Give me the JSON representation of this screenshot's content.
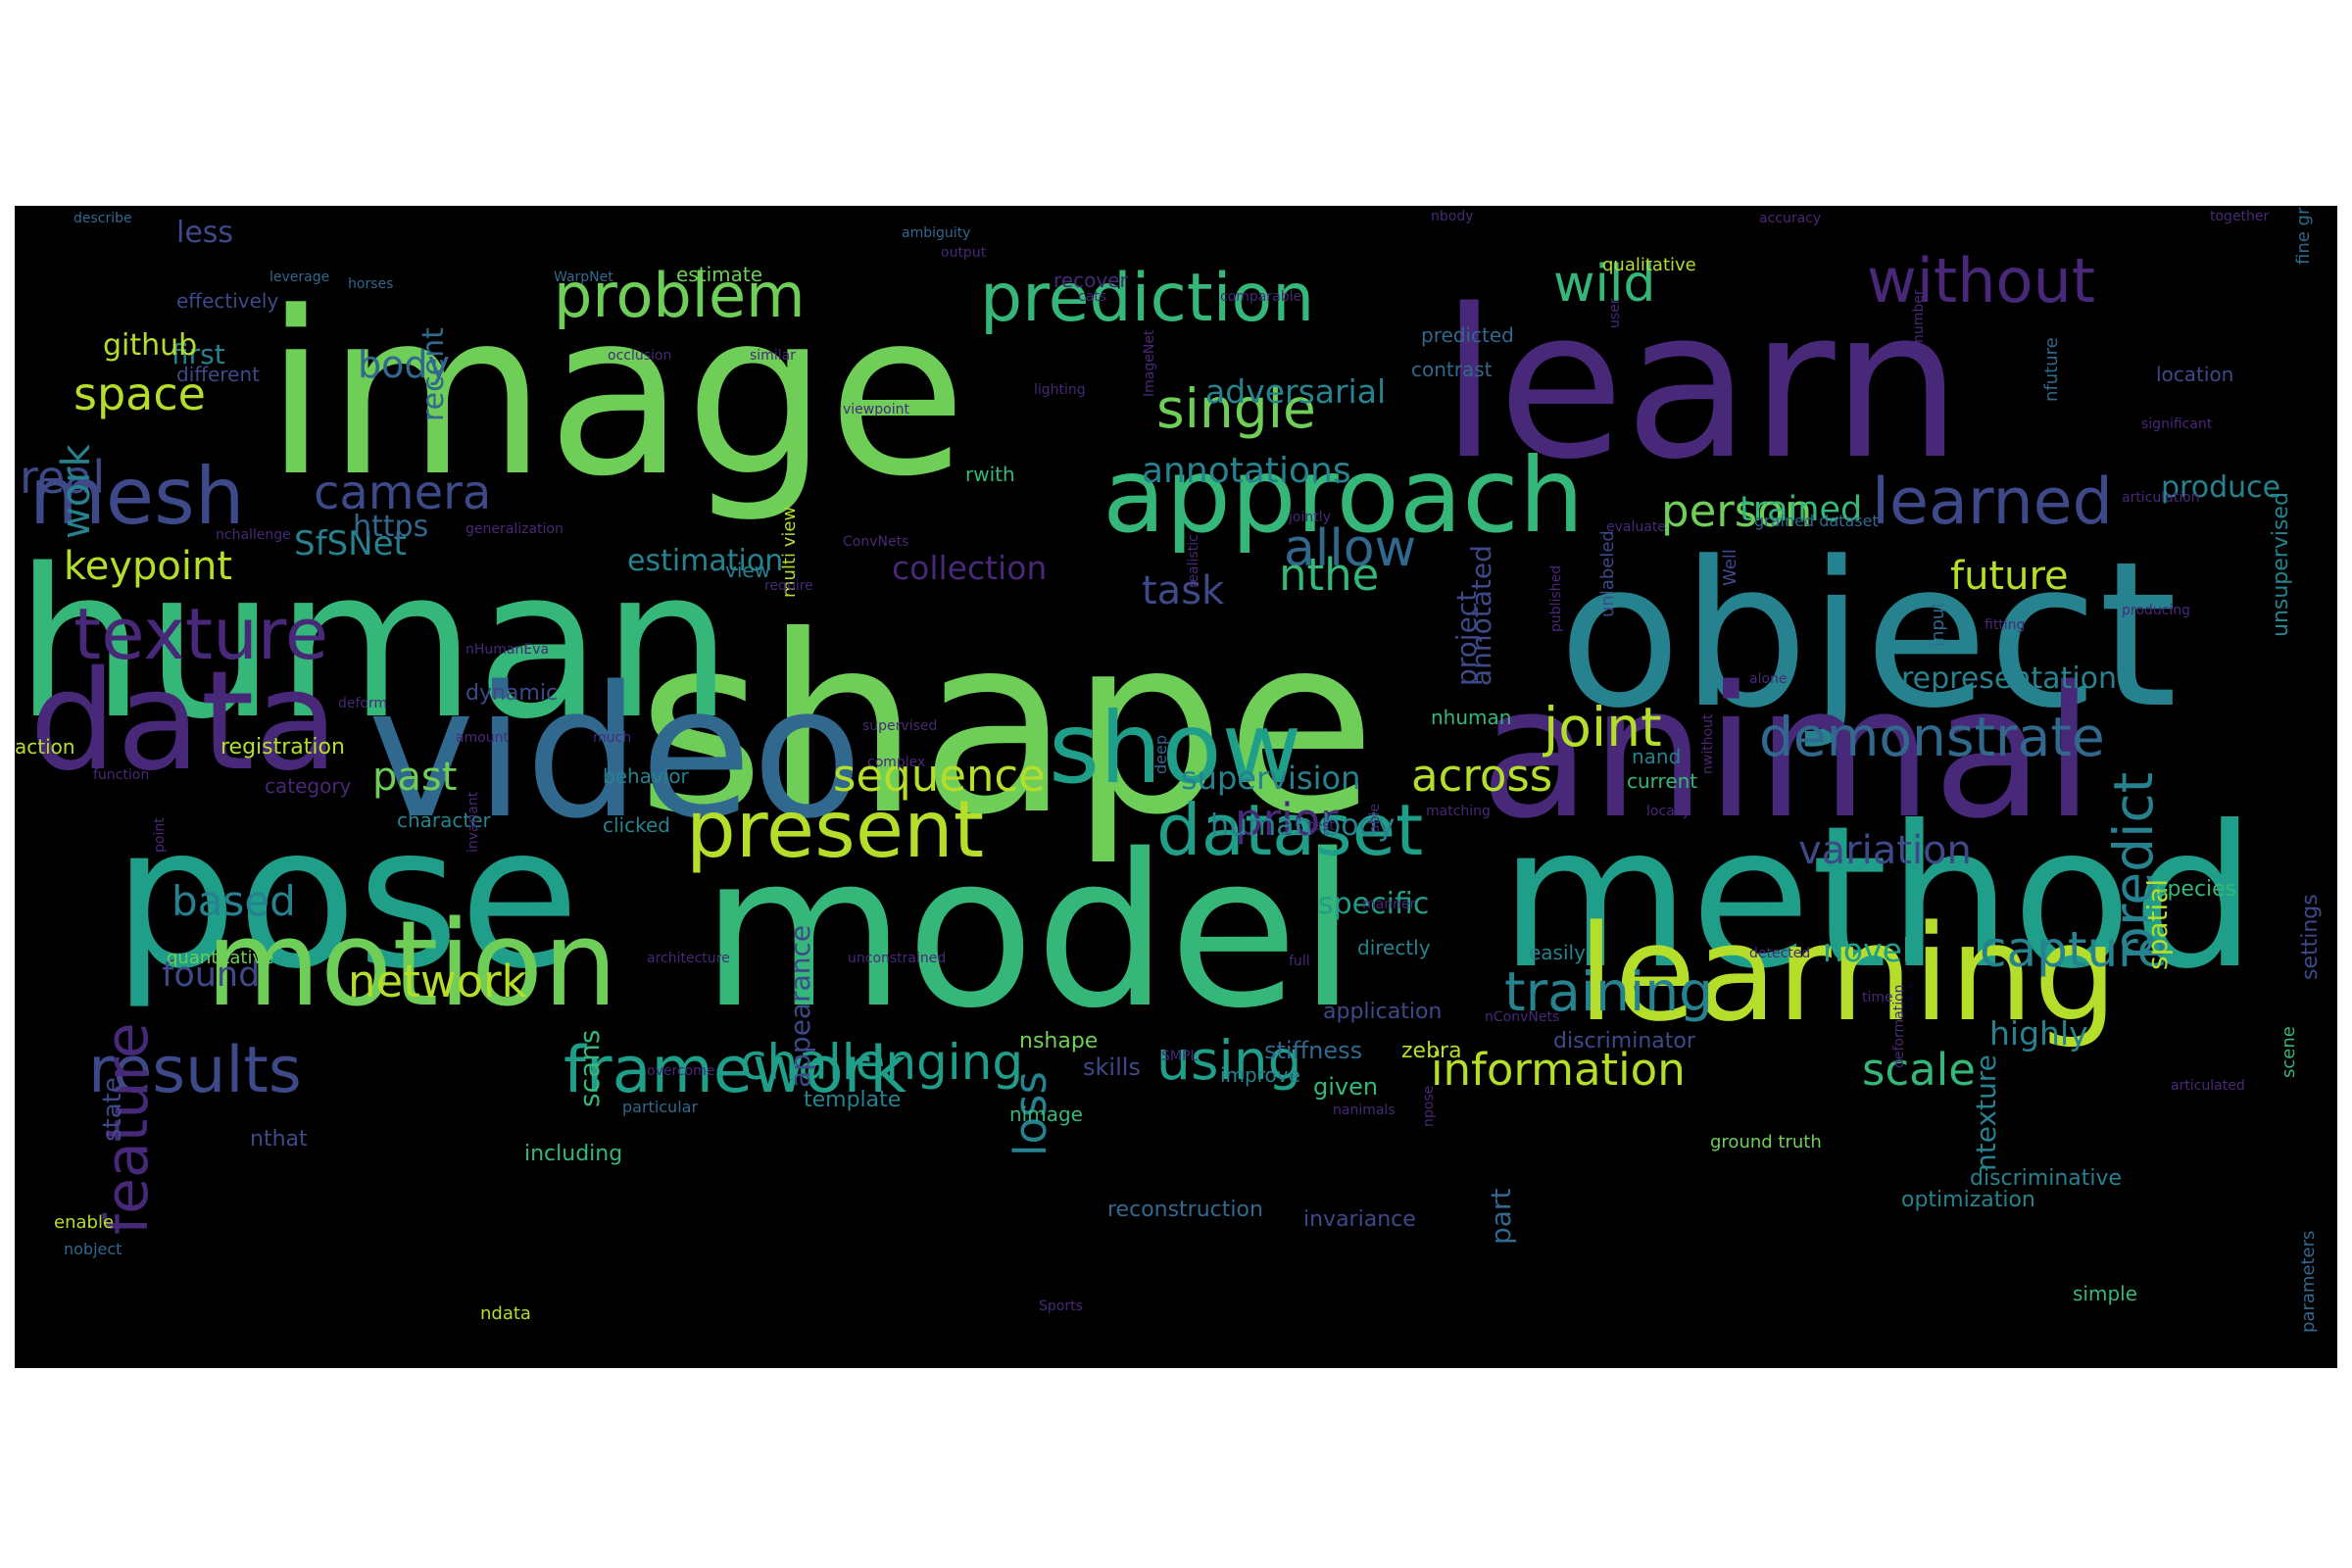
{
  "background_color": "#000000",
  "palette": [
    "#440154",
    "#482878",
    "#3e4989",
    "#31688e",
    "#26828e",
    "#1f9e89",
    "#35b779",
    "#6ece58",
    "#b5de2b",
    "#fde725"
  ],
  "words": [
    {
      "text": "image",
      "color": "#6ece58",
      "weight": 100
    },
    {
      "text": "shape",
      "color": "#6ece58",
      "weight": 100
    },
    {
      "text": "learn",
      "color": "#482878",
      "weight": 96
    },
    {
      "text": "human",
      "color": "#35b779",
      "weight": 88
    },
    {
      "text": "object",
      "color": "#26828e",
      "weight": 84
    },
    {
      "text": "model",
      "color": "#35b779",
      "weight": 92
    },
    {
      "text": "pose",
      "color": "#1f9e89",
      "weight": 90
    },
    {
      "text": "method",
      "color": "#1f9e89",
      "weight": 84
    },
    {
      "text": "animal",
      "color": "#482878",
      "weight": 78
    },
    {
      "text": "video",
      "color": "#31688e",
      "weight": 76
    },
    {
      "text": "data",
      "color": "#482878",
      "weight": 66
    },
    {
      "text": "learning",
      "color": "#b5de2b",
      "weight": 64
    },
    {
      "text": "motion",
      "color": "#6ece58",
      "weight": 60
    },
    {
      "text": "approach",
      "color": "#35b779",
      "weight": 54
    },
    {
      "text": "show",
      "color": "#1f9e89",
      "weight": 54
    },
    {
      "text": "present",
      "color": "#b5de2b",
      "weight": 48
    },
    {
      "text": "mesh",
      "color": "#3e4989",
      "weight": 46
    },
    {
      "text": "texture",
      "color": "#482878",
      "weight": 44
    },
    {
      "text": "dataset",
      "color": "#1f9e89",
      "weight": 42
    },
    {
      "text": "prediction",
      "color": "#35b779",
      "weight": 40
    },
    {
      "text": "results",
      "color": "#3e4989",
      "weight": 40
    },
    {
      "text": "framework",
      "color": "#1f9e89",
      "weight": 40
    },
    {
      "text": "learned",
      "color": "#3e4989",
      "weight": 38
    },
    {
      "text": "problem",
      "color": "#6ece58",
      "weight": 36
    },
    {
      "text": "without",
      "color": "#482878",
      "weight": 36
    },
    {
      "text": "feature",
      "color": "#482878",
      "weight": 36
    },
    {
      "text": "demonstrate",
      "color": "#31688e",
      "weight": 32
    },
    {
      "text": "training",
      "color": "#26828e",
      "weight": 32
    },
    {
      "text": "using",
      "color": "#1f9e89",
      "weight": 32
    },
    {
      "text": "predict",
      "color": "#26828e",
      "weight": 30
    },
    {
      "text": "single",
      "color": "#6ece58",
      "weight": 30
    },
    {
      "text": "capture",
      "color": "#26828e",
      "weight": 30
    },
    {
      "text": "allow",
      "color": "#31688e",
      "weight": 30
    },
    {
      "text": "joint",
      "color": "#b5de2b",
      "weight": 30
    },
    {
      "text": "camera",
      "color": "#3e4989",
      "weight": 28
    },
    {
      "text": "wild",
      "color": "#35b779",
      "weight": 28
    },
    {
      "text": "challenging",
      "color": "#1f9e89",
      "weight": 28
    },
    {
      "text": "information",
      "color": "#b5de2b",
      "weight": 28
    },
    {
      "text": "scale",
      "color": "#35b779",
      "weight": 28
    },
    {
      "text": "network",
      "color": "#b5de2b",
      "weight": 26
    },
    {
      "text": "space",
      "color": "#b5de2b",
      "weight": 26
    },
    {
      "text": "person",
      "color": "#6ece58",
      "weight": 26
    },
    {
      "text": "sequence",
      "color": "#b5de2b",
      "weight": 26
    },
    {
      "text": "across",
      "color": "#b5de2b",
      "weight": 26
    },
    {
      "text": "keypoint",
      "color": "#b5de2b",
      "weight": 24
    },
    {
      "text": "nthe",
      "color": "#35b779",
      "weight": 24
    },
    {
      "text": "future",
      "color": "#b5de2b",
      "weight": 24
    },
    {
      "text": "prior",
      "color": "#482878",
      "weight": 24
    },
    {
      "text": "based",
      "color": "#26828e",
      "weight": 24
    },
    {
      "text": "task",
      "color": "#3e4989",
      "weight": 24
    },
    {
      "text": "loss",
      "color": "#26828e",
      "weight": 24
    },
    {
      "text": "variation",
      "color": "#3e4989",
      "weight": 22
    },
    {
      "text": "past",
      "color": "#6ece58",
      "weight": 22
    },
    {
      "text": "annotations",
      "color": "#26828e",
      "weight": 22
    },
    {
      "text": "SfSNet",
      "color": "#26828e",
      "weight": 22
    },
    {
      "text": "real",
      "color": "#3e4989",
      "weight": 22
    },
    {
      "text": "body",
      "color": "#31688e",
      "weight": 22
    },
    {
      "text": "adversarial",
      "color": "#26828e",
      "weight": 20
    },
    {
      "text": "representation",
      "color": "#26828e",
      "weight": 18
    },
    {
      "text": "collection",
      "color": "#482878",
      "weight": 18
    },
    {
      "text": "produce",
      "color": "#26828e",
      "weight": 18
    },
    {
      "text": "work",
      "color": "#26828e",
      "weight": 18
    },
    {
      "text": "trained",
      "color": "#35b779",
      "weight": 18
    },
    {
      "text": "found",
      "color": "#3e4989",
      "weight": 18
    },
    {
      "text": "novel",
      "color": "#1f9e89",
      "weight": 18
    },
    {
      "text": "highly",
      "color": "#26828e",
      "weight": 18
    },
    {
      "text": "supervision",
      "color": "#26828e",
      "weight": 18
    },
    {
      "text": "human body",
      "color": "#26828e",
      "weight": 18
    },
    {
      "text": "specific",
      "color": "#1f9e89",
      "weight": 18
    },
    {
      "text": "estimation",
      "color": "#26828e",
      "weight": 18
    },
    {
      "text": "https",
      "color": "#31688e",
      "weight": 16
    },
    {
      "text": "first",
      "color": "#26828e",
      "weight": 16
    },
    {
      "text": "github",
      "color": "#b5de2b",
      "weight": 16
    },
    {
      "text": "less",
      "color": "#3e4989",
      "weight": 16
    },
    {
      "text": "recent",
      "color": "#31688e",
      "weight": 16
    },
    {
      "text": "spatial",
      "color": "#b5de2b",
      "weight": 16
    },
    {
      "text": "scans",
      "color": "#35b779",
      "weight": 16
    },
    {
      "text": "appearance",
      "color": "#3e4989",
      "weight": 16
    },
    {
      "text": "annotated",
      "color": "#3e4989",
      "weight": 16
    },
    {
      "text": "project",
      "color": "#3e4989",
      "weight": 16
    },
    {
      "text": "state",
      "color": "#3e4989",
      "weight": 14
    },
    {
      "text": "ntexture",
      "color": "#26828e",
      "weight": 14
    },
    {
      "text": "part",
      "color": "#31688e",
      "weight": 14
    },
    {
      "text": "given",
      "color": "#35b779",
      "weight": 14
    },
    {
      "text": "stiffness",
      "color": "#31688e",
      "weight": 12
    },
    {
      "text": "skills",
      "color": "#3e4989",
      "weight": 12
    },
    {
      "text": "nthat",
      "color": "#3e4989",
      "weight": 14
    },
    {
      "text": "including",
      "color": "#35b779",
      "weight": 12
    },
    {
      "text": "unsupervised",
      "color": "#26828e",
      "weight": 12
    },
    {
      "text": "application",
      "color": "#3e4989",
      "weight": 12
    },
    {
      "text": "nshape",
      "color": "#6ece58",
      "weight": 12
    },
    {
      "text": "zebra",
      "color": "#b5de2b",
      "weight": 12
    },
    {
      "text": "species",
      "color": "#35b779",
      "weight": 12
    },
    {
      "text": "settings",
      "color": "#3e4989",
      "weight": 12
    },
    {
      "text": "dynamic",
      "color": "#3e4989",
      "weight": 12
    },
    {
      "text": "registration",
      "color": "#b5de2b",
      "weight": 12
    },
    {
      "text": "discriminator",
      "color": "#3e4989",
      "weight": 12
    },
    {
      "text": "discriminative",
      "color": "#26828e",
      "weight": 12
    },
    {
      "text": "reconstruction",
      "color": "#31688e",
      "weight": 12
    },
    {
      "text": "optimization",
      "color": "#26828e",
      "weight": 12
    },
    {
      "text": "invariance",
      "color": "#3e4989",
      "weight": 12
    },
    {
      "text": "template",
      "color": "#26828e",
      "weight": 12
    },
    {
      "text": "behavior",
      "color": "#26828e",
      "weight": 12
    },
    {
      "text": "contrast",
      "color": "#31688e",
      "weight": 12
    },
    {
      "text": "recover",
      "color": "#482878",
      "weight": 12
    },
    {
      "text": "estimate",
      "color": "#6ece58",
      "weight": 12
    },
    {
      "text": "effectively",
      "color": "#3e4989",
      "weight": 12
    },
    {
      "text": "different",
      "color": "#3e4989",
      "weight": 12
    },
    {
      "text": "location",
      "color": "#3e4989",
      "weight": 12
    },
    {
      "text": "predicted",
      "color": "#31688e",
      "weight": 12
    },
    {
      "text": "nhuman",
      "color": "#35b779",
      "weight": 12
    },
    {
      "text": "nand",
      "color": "#26828e",
      "weight": 12
    },
    {
      "text": "current",
      "color": "#35b779",
      "weight": 12
    },
    {
      "text": "category",
      "color": "#482878",
      "weight": 12
    },
    {
      "text": "action",
      "color": "#b5de2b",
      "weight": 12
    },
    {
      "text": "character",
      "color": "#26828e",
      "weight": 12
    },
    {
      "text": "clicked",
      "color": "#26828e",
      "weight": 12
    },
    {
      "text": "directly",
      "color": "#26828e",
      "weight": 12
    },
    {
      "text": "easily",
      "color": "#26828e",
      "weight": 12
    },
    {
      "text": "improve",
      "color": "#26828e",
      "weight": 12
    },
    {
      "text": "nimage",
      "color": "#35b779",
      "weight": 12
    },
    {
      "text": "view",
      "color": "#26828e",
      "weight": 12
    },
    {
      "text": "rwith",
      "color": "#35b779",
      "weight": 12
    },
    {
      "text": "simple",
      "color": "#35b779",
      "weight": 12
    },
    {
      "text": "ndata",
      "color": "#b5de2b",
      "weight": 12
    },
    {
      "text": "scene",
      "color": "#35b779",
      "weight": 10
    },
    {
      "text": "quantitative",
      "color": "#6ece58",
      "weight": 10
    },
    {
      "text": "qualitative",
      "color": "#b5de2b",
      "weight": 10
    },
    {
      "text": "enable",
      "color": "#b5de2b",
      "weight": 10
    },
    {
      "text": "ground truth",
      "color": "#6ece58",
      "weight": 10
    },
    {
      "text": "multi view",
      "color": "#b5de2b",
      "weight": 10
    },
    {
      "text": "unlabeled",
      "color": "#3e4989",
      "weight": 10
    },
    {
      "text": "Well",
      "color": "#3e4989",
      "weight": 10
    },
    {
      "text": "input",
      "color": "#31688e",
      "weight": 10
    },
    {
      "text": "nfuture",
      "color": "#31688e",
      "weight": 10
    },
    {
      "text": "parameters",
      "color": "#31688e",
      "weight": 10
    },
    {
      "text": "fine grained",
      "color": "#31688e",
      "weight": 10
    },
    {
      "text": "deep",
      "color": "#31688e",
      "weight": 10
    },
    {
      "text": "particular",
      "color": "#31688e",
      "weight": 10
    },
    {
      "text": "grained dataset",
      "color": "#31688e",
      "weight": 10
    },
    {
      "text": "nobject",
      "color": "#31688e",
      "weight": 10
    },
    {
      "text": "describe",
      "color": "#31688e",
      "weight": 10
    },
    {
      "text": "leverage",
      "color": "#31688e",
      "weight": 8
    },
    {
      "text": "horses",
      "color": "#31688e",
      "weight": 8
    },
    {
      "text": "WarpNet",
      "color": "#31688e",
      "weight": 8
    },
    {
      "text": "ambiguity",
      "color": "#31688e",
      "weight": 8
    },
    {
      "text": "output",
      "color": "#482878",
      "weight": 8
    },
    {
      "text": "nbody",
      "color": "#482878",
      "weight": 8
    },
    {
      "text": "cats",
      "color": "#482878",
      "weight": 8
    },
    {
      "text": "comparable",
      "color": "#482878",
      "weight": 8
    },
    {
      "text": "accuracy",
      "color": "#482878",
      "weight": 8
    },
    {
      "text": "together",
      "color": "#482878",
      "weight": 8
    },
    {
      "text": "occlusion",
      "color": "#482878",
      "weight": 8
    },
    {
      "text": "similar",
      "color": "#482878",
      "weight": 8
    },
    {
      "text": "user",
      "color": "#482878",
      "weight": 8
    },
    {
      "text": "number",
      "color": "#482878",
      "weight": 8
    },
    {
      "text": "significant",
      "color": "#482878",
      "weight": 8
    },
    {
      "text": "viewpoint",
      "color": "#482878",
      "weight": 8
    },
    {
      "text": "lighting",
      "color": "#482878",
      "weight": 8
    },
    {
      "text": "ImageNet",
      "color": "#482878",
      "weight": 8
    },
    {
      "text": "jointly",
      "color": "#482878",
      "weight": 8
    },
    {
      "text": "articulation",
      "color": "#482878",
      "weight": 8
    },
    {
      "text": "nchallenge",
      "color": "#482878",
      "weight": 8
    },
    {
      "text": "generalization",
      "color": "#482878",
      "weight": 8
    },
    {
      "text": "ConvNets",
      "color": "#482878",
      "weight": 8
    },
    {
      "text": "evaluate",
      "color": "#482878",
      "weight": 8
    },
    {
      "text": "require",
      "color": "#482878",
      "weight": 8
    },
    {
      "text": "realistic",
      "color": "#482878",
      "weight": 8
    },
    {
      "text": "producing",
      "color": "#482878",
      "weight": 8
    },
    {
      "text": "fitting",
      "color": "#482878",
      "weight": 8
    },
    {
      "text": "nHumanEva",
      "color": "#482878",
      "weight": 8
    },
    {
      "text": "published",
      "color": "#482878",
      "weight": 8
    },
    {
      "text": "deform",
      "color": "#482878",
      "weight": 8
    },
    {
      "text": "alone",
      "color": "#482878",
      "weight": 8
    },
    {
      "text": "amount",
      "color": "#482878",
      "weight": 8
    },
    {
      "text": "function",
      "color": "#482878",
      "weight": 8
    },
    {
      "text": "supervised",
      "color": "#482878",
      "weight": 8
    },
    {
      "text": "much",
      "color": "#482878",
      "weight": 8
    },
    {
      "text": "complex",
      "color": "#482878",
      "weight": 8
    },
    {
      "text": "locally",
      "color": "#482878",
      "weight": 8
    },
    {
      "text": "matching",
      "color": "#482878",
      "weight": 8
    },
    {
      "text": "test",
      "color": "#482878",
      "weight": 8
    },
    {
      "text": "nwithout",
      "color": "#482878",
      "weight": 8
    },
    {
      "text": "able",
      "color": "#482878",
      "weight": 8
    },
    {
      "text": "point",
      "color": "#482878",
      "weight": 8
    },
    {
      "text": "invariant",
      "color": "#482878",
      "weight": 8
    },
    {
      "text": "manner",
      "color": "#482878",
      "weight": 8
    },
    {
      "text": "architecture",
      "color": "#482878",
      "weight": 8
    },
    {
      "text": "unconstrained",
      "color": "#482878",
      "weight": 8
    },
    {
      "text": "detected",
      "color": "#482878",
      "weight": 8
    },
    {
      "text": "time",
      "color": "#482878",
      "weight": 8
    },
    {
      "text": "full",
      "color": "#482878",
      "weight": 8
    },
    {
      "text": "nConvNets",
      "color": "#482878",
      "weight": 8
    },
    {
      "text": "npose",
      "color": "#482878",
      "weight": 8
    },
    {
      "text": "SMPL",
      "color": "#482878",
      "weight": 8
    },
    {
      "text": "deformation",
      "color": "#482878",
      "weight": 8
    },
    {
      "text": "articulated",
      "color": "#482878",
      "weight": 8
    },
    {
      "text": "overcome",
      "color": "#482878",
      "weight": 8
    },
    {
      "text": "nanimals",
      "color": "#482878",
      "weight": 8
    },
    {
      "text": "Sports",
      "color": "#482878",
      "weight": 8
    }
  ]
}
